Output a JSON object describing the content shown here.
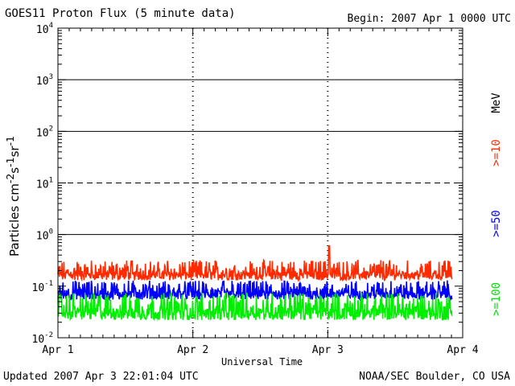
{
  "header": {
    "title": "GOES11 Proton Flux (5 minute data)",
    "begin": "Begin: 2007 Apr 1 0000 UTC"
  },
  "footer": {
    "updated": "Updated 2007 Apr  3 22:01:04 UTC",
    "credit": "NOAA/SEC Boulder, CO USA"
  },
  "labels": {
    "unit": "MeV",
    "ch10": ">=10",
    "ch50": ">=50",
    "ch100": ">=100"
  },
  "colors": {
    "p10": "#ff2a00",
    "p50": "#0000ff",
    "p100": "#00ee00",
    "grid": "#000000"
  },
  "chart_data": {
    "type": "line",
    "title": "GOES11 Proton Flux (5 minute data)",
    "xlabel": "Universal Time",
    "ylabel": "Particles cm⁻²s⁻¹sr⁻¹",
    "yscale": "log",
    "ylim": [
      0.01,
      10000
    ],
    "xlim": [
      0,
      3
    ],
    "x_ticks": [
      "Apr 1",
      "Apr 2",
      "Apr 3",
      "Apr 4"
    ],
    "y_ticks": [
      {
        "value": 0.01,
        "base": "10",
        "exp": "-2"
      },
      {
        "value": 0.1,
        "base": "10",
        "exp": "-1"
      },
      {
        "value": 1,
        "base": "10",
        "exp": "0"
      },
      {
        "value": 10,
        "base": "10",
        "exp": "1"
      },
      {
        "value": 100,
        "base": "10",
        "exp": "2"
      },
      {
        "value": 1000,
        "base": "10",
        "exp": "3"
      },
      {
        "value": 10000,
        "base": "10",
        "exp": "4"
      }
    ],
    "reference_lines": [
      {
        "value": 10,
        "style": "dashed"
      },
      {
        "value": 1,
        "style": "solid"
      },
      {
        "value": 100,
        "style": "solid"
      },
      {
        "value": 1000,
        "style": "solid"
      }
    ],
    "data_end_day": 2.92,
    "series": [
      {
        "name": ">=10 MeV",
        "color_key": "p10",
        "min": 0.13,
        "max": 0.32,
        "spike": {
          "day": 2.01,
          "value": 0.6
        }
      },
      {
        "name": ">=50 MeV",
        "color_key": "p50",
        "min": 0.055,
        "max": 0.13
      },
      {
        "name": ">=100 MeV",
        "color_key": "p100",
        "min": 0.022,
        "max": 0.075
      }
    ]
  }
}
